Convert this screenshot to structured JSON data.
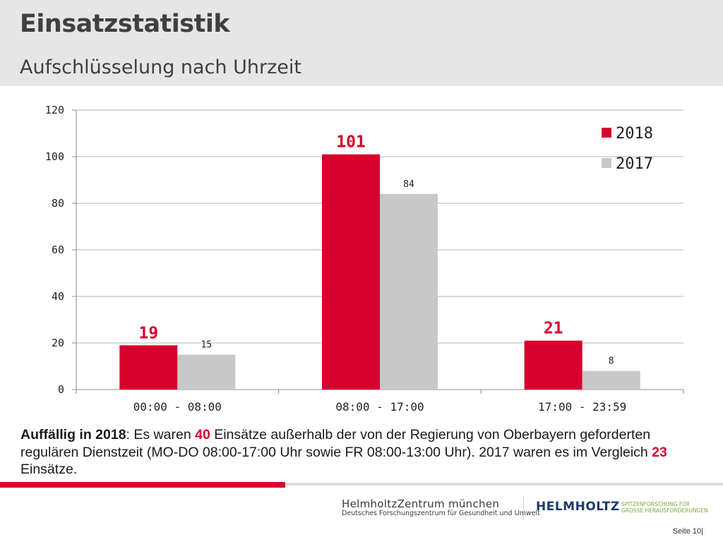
{
  "header": {
    "title": "Einsatzstatistik",
    "subtitle": "Aufschlüsselung nach Uhrzeit"
  },
  "chart_data": {
    "type": "bar",
    "categories": [
      "00:00 - 08:00",
      "08:00 - 17:00",
      "17:00 - 23:59"
    ],
    "series": [
      {
        "name": "2018",
        "values": [
          19,
          101,
          21
        ],
        "color": "#d8002c"
      },
      {
        "name": "2017",
        "values": [
          15,
          84,
          8
        ],
        "color": "#c8c8c8"
      }
    ],
    "y_ticks": [
      "0",
      "20",
      "40",
      "60",
      "80",
      "100",
      "120"
    ],
    "ylim": [
      0,
      120
    ],
    "grid": true,
    "legend_position": "top-right",
    "data_labels": [
      [
        "19",
        "101",
        "21"
      ],
      [
        "15",
        "84",
        "8"
      ]
    ]
  },
  "note": {
    "lead": "Auffällig in 2018",
    "part1": ": Es waren ",
    "count_2018": "40",
    "part2": " Einsätze außerhalb der von der Regierung von Oberbayern geforderten regulären Dienstzeit (MO-DO 08:00-17:00 Uhr sowie FR 08:00-13:00 Uhr). 2017 waren es im Vergleich ",
    "count_2017": "23",
    "part3": " Einsätze."
  },
  "footer": {
    "org_name": "HelmholtzZentrum münchen",
    "org_sub": "Deutsches Forschungszentrum für Gesundheit und Umwelt",
    "helmholtz": "HELMHOLTZ",
    "helmholtz_sub1": "SPITZENFORSCHUNG FÜR",
    "helmholtz_sub2": "GROSSE HERAUSFORDERUNGEN",
    "page_label": "Seite 10|"
  }
}
